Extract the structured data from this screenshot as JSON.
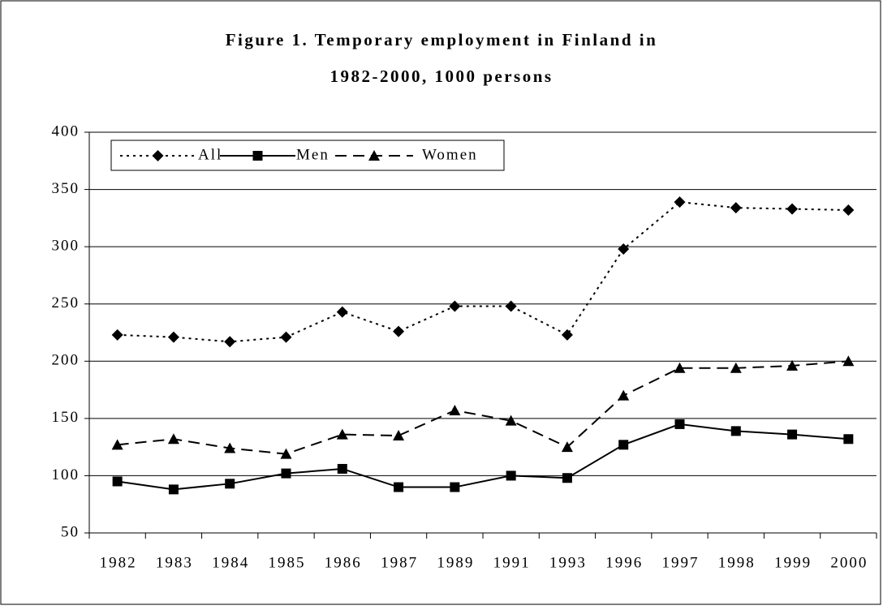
{
  "chart_data": {
    "type": "line",
    "title": [
      "Figure 1. Temporary employment  in Finland in",
      "1982-2000, 1000 persons"
    ],
    "categories": [
      "1982",
      "1983",
      "1984",
      "1985",
      "1986",
      "1987",
      "1989",
      "1991",
      "1993",
      "1996",
      "1997",
      "1998",
      "1999",
      "2000"
    ],
    "series": [
      {
        "name": "All",
        "color": "#000000",
        "dash": "dotted",
        "marker": "diamond",
        "values": [
          223,
          221,
          217,
          221,
          243,
          226,
          248,
          248,
          223,
          298,
          339,
          334,
          333,
          332
        ]
      },
      {
        "name": "Men",
        "color": "#000000",
        "dash": "solid",
        "marker": "square",
        "values": [
          95,
          88,
          93,
          102,
          106,
          90,
          90,
          100,
          98,
          127,
          145,
          139,
          136,
          132
        ]
      },
      {
        "name": "Women",
        "color": "#000000",
        "dash": "dashed",
        "marker": "triangle",
        "values": [
          127,
          132,
          124,
          119,
          136,
          135,
          157,
          148,
          125,
          170,
          194,
          194,
          196,
          200
        ]
      }
    ],
    "ylim": [
      50,
      400
    ],
    "yticks": [
      50,
      100,
      150,
      200,
      250,
      300,
      350,
      400
    ],
    "grid": true,
    "legend": "top-left"
  }
}
